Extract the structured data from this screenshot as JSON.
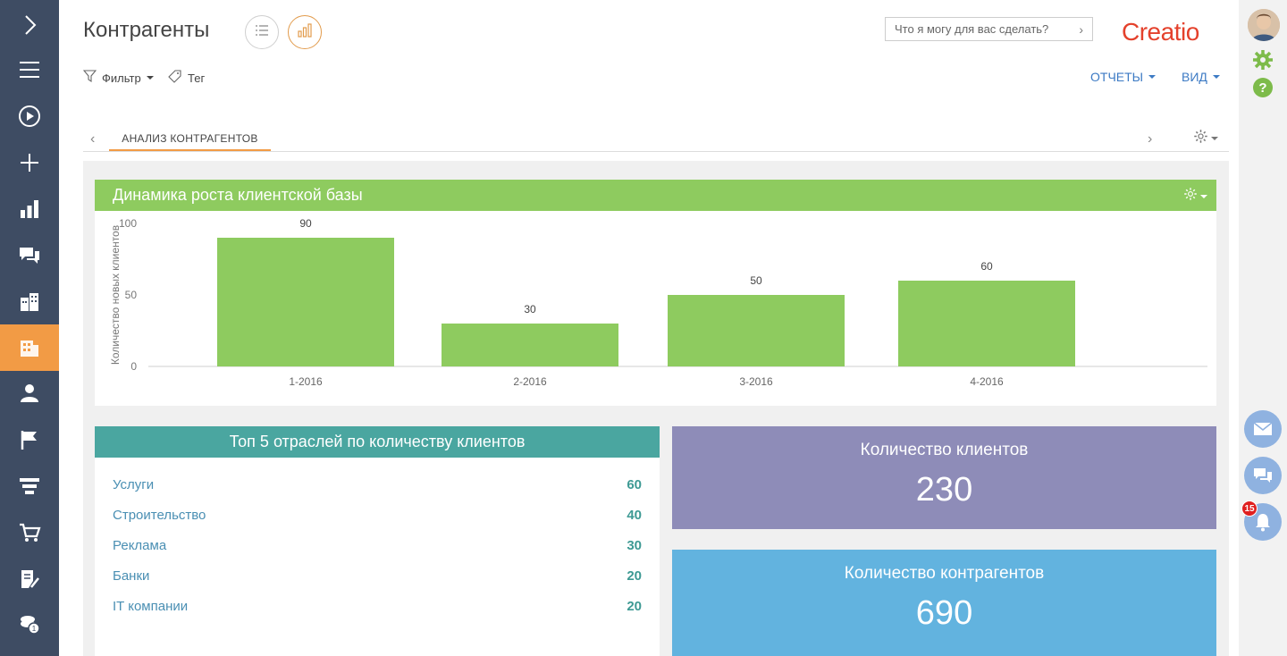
{
  "page": {
    "title": "Контрагенты"
  },
  "search": {
    "placeholder": "Что я могу для вас сделать?"
  },
  "brand": {
    "logo_text": "Creatio",
    "color": "#e4412c"
  },
  "toolbar": {
    "filter_label": "Фильтр",
    "tag_label": "Тег",
    "reports_label": "ОТЧЕТЫ",
    "view_label": "ВИД"
  },
  "tabs": [
    {
      "label": "АНАЛИЗ КОНТРАГЕНТОВ",
      "active": true
    }
  ],
  "sidebar": {
    "active_index": 7,
    "items": [
      "expand-icon",
      "menu-icon",
      "play-icon",
      "plus-icon",
      "analytics-icon",
      "feed-icon",
      "accounts-icon",
      "contractors-icon",
      "contact-icon",
      "flag-icon",
      "funnel-icon",
      "cart-icon",
      "document-icon",
      "coins-icon"
    ]
  },
  "rightrail": {
    "notification_count": "15"
  },
  "chart_widget": {
    "title": "Динамика роста клиентской базы"
  },
  "chart_data": {
    "type": "bar",
    "categories": [
      "1-2016",
      "2-2016",
      "3-2016",
      "4-2016"
    ],
    "values": [
      90,
      30,
      50,
      60
    ],
    "ylabel": "Количество новых клиентов",
    "ylim": [
      0,
      100
    ],
    "yticks": [
      0,
      50,
      100
    ],
    "data_labels": true,
    "bar_color": "#8ecb5f"
  },
  "top5": {
    "title": "Топ 5 отраслей по количеству клиентов",
    "rows": [
      {
        "label": "Услуги",
        "value": "60"
      },
      {
        "label": "Строительство",
        "value": "40"
      },
      {
        "label": "Реклама",
        "value": "30"
      },
      {
        "label": "Банки",
        "value": "20"
      },
      {
        "label": "IT компании",
        "value": "20"
      }
    ]
  },
  "kpi_clients": {
    "title": "Количество клиентов",
    "value": "230",
    "color": "#8e8cb8"
  },
  "kpi_contractors": {
    "title": "Количество контрагентов",
    "value": "690",
    "color": "#62b3df"
  }
}
